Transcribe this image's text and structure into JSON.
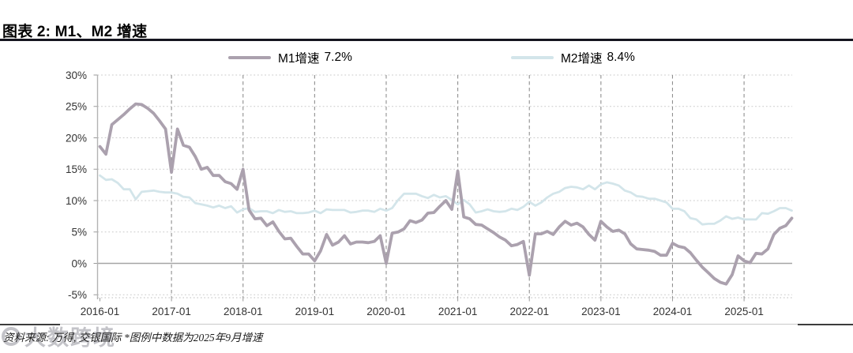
{
  "page": {
    "title": "图表 2: M1、M2 增速",
    "source_note": "资料来源: 万得, 交银国际 *图例中数据为2025年9月增速",
    "watermark": "大数跨境"
  },
  "legend": [
    {
      "label": "M1增速",
      "value": "7.2%",
      "color": "#aba1ae"
    },
    {
      "label": "M2增速",
      "value": "8.4%",
      "color": "#d3e5ea"
    }
  ],
  "chart_data": {
    "type": "line",
    "title": "图表 2: M1、M2 增速",
    "x_monthly_start": "2016-01",
    "x_monthly_end": "2025-09",
    "x_axis": {
      "tick_labels": [
        "2016-01",
        "2017-01",
        "2018-01",
        "2019-01",
        "2020-01",
        "2021-01",
        "2022-01",
        "2023-01",
        "2024-01",
        "2025-01"
      ]
    },
    "y_axis": {
      "ticks": [
        30,
        25,
        20,
        15,
        10,
        5,
        0,
        -5
      ],
      "unit": "%",
      "range": [
        -5,
        30
      ]
    },
    "grid": {
      "horizontal": "dotted",
      "vertical": "dashed-yearly",
      "zero_line": "solid"
    },
    "legend_position": "top",
    "series": [
      {
        "name": "M1增速",
        "latest_label": "7.2%",
        "color": "#aba1ae",
        "stroke_width": 3.8,
        "values": [
          18.6,
          17.4,
          22.1,
          22.9,
          23.7,
          24.6,
          25.4,
          25.3,
          24.7,
          23.9,
          22.7,
          21.4,
          14.5,
          21.4,
          18.8,
          18.5,
          17.0,
          15.0,
          15.3,
          14.0,
          14.0,
          13.0,
          12.7,
          11.8,
          15.0,
          8.5,
          7.1,
          7.2,
          6.0,
          6.6,
          5.1,
          3.9,
          4.0,
          2.7,
          1.5,
          1.5,
          0.4,
          2.0,
          4.6,
          2.9,
          3.4,
          4.4,
          3.1,
          3.4,
          3.4,
          3.3,
          3.5,
          4.4,
          0.0,
          4.8,
          5.0,
          5.5,
          6.8,
          6.5,
          6.9,
          8.0,
          8.1,
          9.1,
          10.0,
          8.6,
          14.7,
          7.4,
          7.1,
          6.2,
          6.1,
          5.5,
          4.9,
          4.2,
          3.7,
          2.8,
          3.0,
          3.5,
          -1.9,
          4.7,
          4.7,
          5.1,
          4.6,
          5.8,
          6.7,
          6.1,
          6.4,
          5.8,
          4.6,
          3.7,
          6.7,
          5.8,
          5.1,
          5.3,
          4.7,
          3.1,
          2.3,
          2.2,
          2.1,
          1.9,
          1.3,
          1.3,
          3.2,
          2.7,
          2.5,
          1.7,
          0.5,
          -0.6,
          -1.5,
          -2.4,
          -3.0,
          -3.3,
          -1.8,
          1.2,
          0.4,
          0.1,
          1.6,
          1.5,
          2.3,
          4.6,
          5.6,
          6.0,
          7.2
        ]
      },
      {
        "name": "M2增速",
        "latest_label": "8.4%",
        "color": "#d3e5ea",
        "stroke_width": 2.8,
        "values": [
          14.0,
          13.3,
          13.4,
          12.8,
          11.8,
          11.8,
          10.2,
          11.4,
          11.5,
          11.6,
          11.4,
          11.3,
          11.3,
          11.1,
          10.6,
          10.5,
          9.6,
          9.4,
          9.2,
          8.9,
          9.2,
          8.8,
          9.1,
          8.1,
          8.6,
          8.8,
          8.2,
          8.3,
          8.3,
          8.0,
          8.5,
          8.2,
          8.3,
          8.0,
          8.0,
          8.1,
          8.4,
          8.0,
          8.6,
          8.5,
          8.5,
          8.5,
          8.1,
          8.2,
          8.4,
          8.4,
          8.2,
          8.7,
          8.4,
          8.8,
          10.1,
          11.1,
          11.1,
          11.1,
          10.7,
          10.4,
          10.9,
          10.5,
          10.7,
          10.1,
          9.4,
          10.1,
          9.4,
          8.1,
          8.3,
          8.6,
          8.3,
          8.2,
          8.3,
          8.7,
          8.5,
          9.0,
          9.8,
          9.2,
          9.7,
          10.5,
          11.1,
          11.4,
          12.0,
          12.2,
          12.1,
          11.8,
          12.4,
          11.8,
          12.6,
          12.9,
          12.7,
          12.4,
          11.6,
          11.3,
          10.7,
          10.6,
          10.3,
          10.3,
          10.0,
          9.7,
          8.7,
          8.7,
          8.3,
          7.2,
          7.0,
          6.2,
          6.3,
          6.3,
          6.8,
          7.5,
          7.1,
          7.3,
          7.0,
          7.0,
          7.0,
          8.0,
          7.9,
          8.3,
          8.8,
          8.8,
          8.4
        ]
      }
    ]
  }
}
